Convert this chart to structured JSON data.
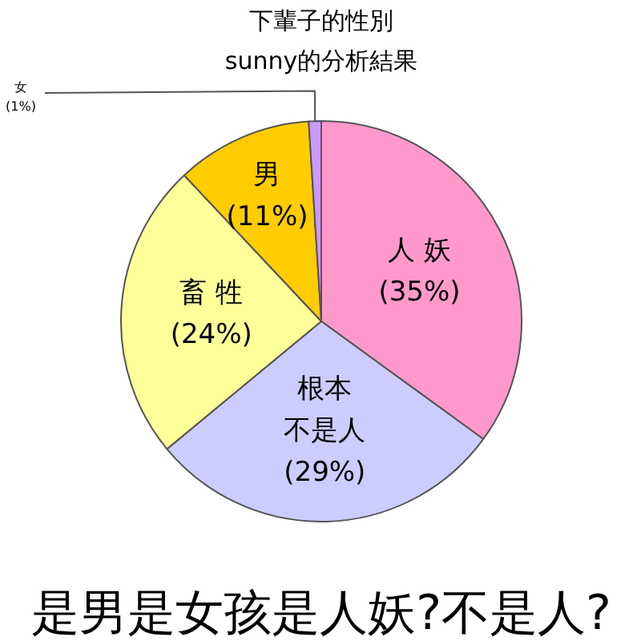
{
  "chart_data": {
    "type": "pie",
    "title": "下輩子的性別",
    "subtitle": "sunny的分析結果",
    "categories": [
      "人 妖",
      "根本不是人",
      "畜 牲",
      "男",
      "女"
    ],
    "values": [
      35,
      29,
      24,
      11,
      1
    ],
    "value_labels": [
      "(35%)",
      "(29%)",
      "(24%)",
      "(11%)",
      "(1%)"
    ],
    "colors": [
      "#ff99cc",
      "#ccccff",
      "#ffff99",
      "#ffcc00",
      "#cc99ff"
    ],
    "annotations": [
      "是男是女孩是人妖?不是人?"
    ]
  }
}
